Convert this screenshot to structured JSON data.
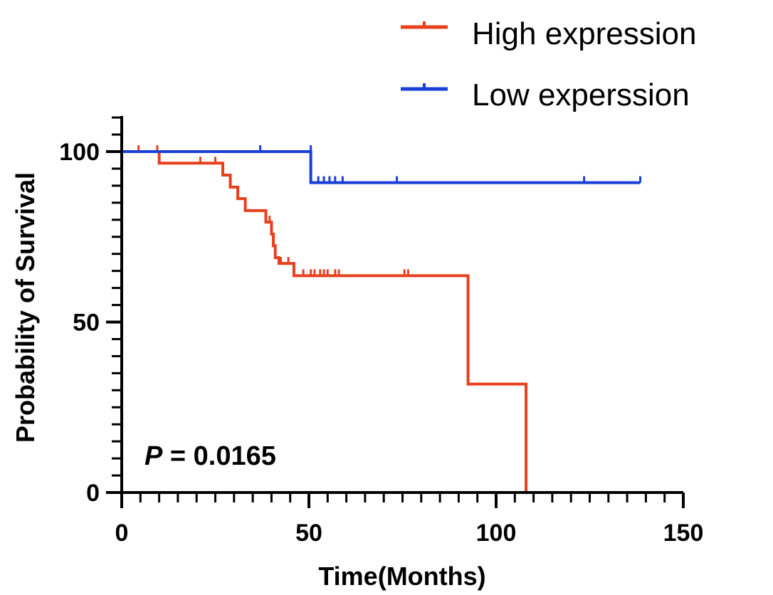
{
  "chart_data": {
    "type": "line",
    "subtype": "kaplan-meier",
    "title": "",
    "xlabel": "Time(Months)",
    "ylabel": "Probability of Survival",
    "xlim": [
      0,
      150
    ],
    "ylim": [
      0,
      100
    ],
    "x_ticks": [
      0,
      50,
      100,
      150
    ],
    "y_ticks": [
      0,
      50,
      100
    ],
    "x_tick_labels": [
      "0",
      "50",
      "100",
      "150"
    ],
    "y_tick_labels": [
      "0",
      "50",
      "100"
    ],
    "grid": false,
    "legend_position": "top-right",
    "annotation": {
      "p_label": "P",
      "p_rest": " = 0.0165"
    },
    "series": [
      {
        "name": "High expression",
        "color": "#e8401c",
        "steps": [
          [
            0,
            100
          ],
          [
            10,
            96.6
          ],
          [
            27,
            93.1
          ],
          [
            29,
            89.6
          ],
          [
            31,
            86.2
          ],
          [
            33,
            82.7
          ],
          [
            38.5,
            79.3
          ],
          [
            40,
            75.8
          ],
          [
            40.5,
            72.4
          ],
          [
            41,
            68.9
          ],
          [
            42,
            67.2
          ],
          [
            46,
            63.6
          ],
          [
            92.5,
            31.8
          ],
          [
            108,
            0
          ]
        ],
        "end_x": 108,
        "censored": [
          [
            4.5,
            100
          ],
          [
            9.5,
            100
          ],
          [
            21,
            96.6
          ],
          [
            25,
            96.6
          ],
          [
            39.5,
            79.3
          ],
          [
            42.5,
            67.2
          ],
          [
            44.5,
            67.2
          ],
          [
            48.5,
            63.6
          ],
          [
            50.5,
            63.6
          ],
          [
            51.5,
            63.6
          ],
          [
            53,
            63.6
          ],
          [
            54,
            63.6
          ],
          [
            55,
            63.6
          ],
          [
            57,
            63.6
          ],
          [
            58,
            63.6
          ],
          [
            75.5,
            63.6
          ],
          [
            76.5,
            63.6
          ]
        ]
      },
      {
        "name": "Low experssion",
        "color": "#1a3fd8",
        "steps": [
          [
            0,
            100
          ],
          [
            50.5,
            90.9
          ]
        ],
        "end_x": 138.5,
        "censored": [
          [
            37,
            100
          ],
          [
            50.5,
            100
          ],
          [
            52.5,
            90.9
          ],
          [
            54,
            90.9
          ],
          [
            55.5,
            90.9
          ],
          [
            57,
            90.9
          ],
          [
            59,
            90.9
          ],
          [
            73.5,
            90.9
          ],
          [
            123.5,
            90.9
          ],
          [
            138.5,
            90.9
          ]
        ]
      }
    ]
  }
}
